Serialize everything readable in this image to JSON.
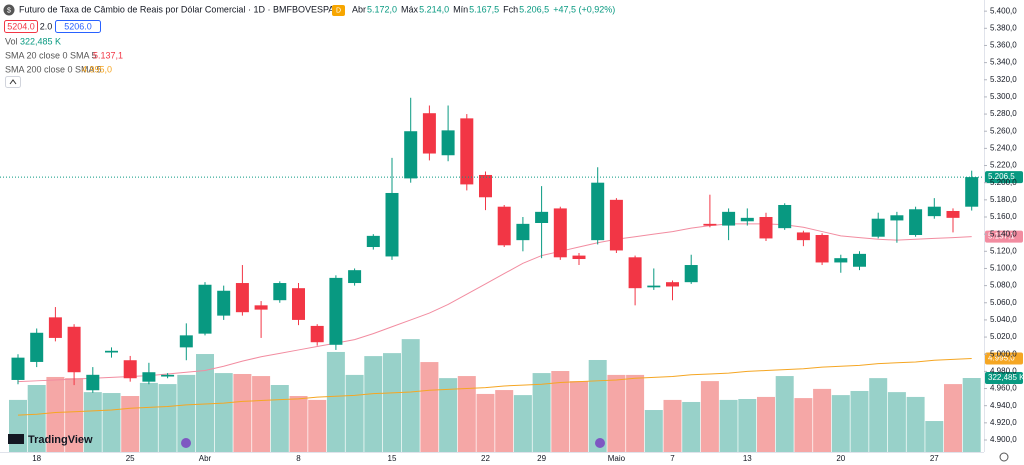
{
  "header": {
    "title": "Futuro de Taxa de Câmbio de Reais por Dólar Comercial · 1D · BMFBOVESPA",
    "badge": "D",
    "stats": [
      {
        "k": "Abr",
        "v": "5.172,0"
      },
      {
        "k": "Máx",
        "v": "5.214,0"
      },
      {
        "k": "Mín",
        "v": "5.167,5"
      },
      {
        "k": "Fch",
        "v": "5.206,5"
      }
    ],
    "change": "+47,5 (+0,92%)",
    "bid": "5204.0",
    "spread": "2.0",
    "ask": "5206.0",
    "logo": "TradingView"
  },
  "chart_data": {
    "type": "candlestick",
    "up_color": "#089981",
    "down_color": "#f23645",
    "categories": [
      null,
      "18",
      null,
      null,
      null,
      null,
      "25",
      null,
      null,
      null,
      "Abr",
      null,
      null,
      null,
      null,
      "8",
      null,
      null,
      null,
      null,
      "15",
      null,
      null,
      null,
      null,
      "22",
      null,
      null,
      "29",
      null,
      null,
      null,
      "Maio",
      null,
      null,
      "7",
      null,
      null,
      null,
      "13",
      null,
      null,
      null,
      null,
      "20",
      null,
      null,
      null,
      null,
      "27",
      null,
      null
    ],
    "open": [
      4970,
      4991,
      5043,
      5032,
      4958,
      5002,
      4993,
      4968,
      4974,
      5008,
      5024,
      5045,
      5083,
      5057,
      5063,
      5077,
      5033,
      5011,
      5083,
      5125,
      5114,
      5205,
      5281,
      5232,
      5275,
      5209,
      5172,
      5133,
      5153,
      5170,
      5115,
      5133,
      5180,
      5113,
      5078,
      5084,
      5084,
      5152,
      5150,
      5155,
      5160,
      5147,
      5142,
      5139,
      5107,
      5102,
      5137,
      5156,
      5139,
      5161,
      5167,
      5172
    ],
    "high": [
      5000,
      5030,
      5055,
      5035,
      4985,
      5008,
      4998,
      4990,
      4978,
      5036,
      5084,
      5080,
      5104,
      5062,
      5085,
      5083,
      5035,
      5092,
      5100,
      5140,
      5229,
      5299,
      5290,
      5290,
      5280,
      5213,
      5174,
      5160,
      5196,
      5172,
      5118,
      5218,
      5182,
      5115,
      5100,
      5086,
      5116,
      5186,
      5170,
      5170,
      5165,
      5176,
      5144,
      5141,
      5116,
      5120,
      5165,
      5166,
      5172,
      5182,
      5170,
      5214
    ],
    "low": [
      4965,
      4985,
      5015,
      4964,
      4955,
      4996,
      4968,
      4965,
      4972,
      4993,
      5022,
      5040,
      5045,
      5019,
      5060,
      5034,
      5010,
      5005,
      5080,
      5122,
      5110,
      5200,
      5226,
      5225,
      5191,
      5168,
      5125,
      5120,
      5112,
      5110,
      5104,
      5128,
      5118,
      5057,
      5075,
      5063,
      5082,
      5148,
      5133,
      5150,
      5132,
      5145,
      5126,
      5104,
      5095,
      5098,
      5135,
      5130,
      5137,
      5158,
      5142,
      5167.5
    ],
    "close": [
      4996,
      5025,
      5019,
      4979,
      4976,
      5004,
      4972,
      4979,
      4976,
      5022,
      5081,
      5074,
      5049,
      5052,
      5083,
      5040,
      5014,
      5089,
      5098,
      5138,
      5188,
      5260,
      5234,
      5261,
      5198,
      5183,
      5127,
      5152,
      5166,
      5113,
      5111,
      5200,
      5121,
      5077,
      5080,
      5079,
      5104,
      5150,
      5166,
      5159,
      5135,
      5174,
      5133,
      5107,
      5112,
      5117,
      5158,
      5162,
      5169,
      5172,
      5159,
      5206.5
    ],
    "close_label": "5.206,5",
    "ylim": [
      4886,
      5413
    ],
    "yticks": [
      {
        "value": 5400,
        "label": "5.400,0"
      },
      {
        "value": 5380,
        "label": "5.380,0"
      },
      {
        "value": 5360,
        "label": "5.360,0"
      },
      {
        "value": 5340,
        "label": "5.340,0"
      },
      {
        "value": 5320,
        "label": "5.320,0"
      },
      {
        "value": 5300,
        "label": "5.300,0"
      },
      {
        "value": 5280,
        "label": "5.280,0"
      },
      {
        "value": 5260,
        "label": "5.260,0"
      },
      {
        "value": 5240,
        "label": "5.240,0"
      },
      {
        "value": 5220,
        "label": "5.220,0"
      },
      {
        "value": 5200,
        "label": "5.200,0"
      },
      {
        "value": 5180,
        "label": "5.180,0"
      },
      {
        "value": 5160,
        "label": "5.160,0"
      },
      {
        "value": 5140,
        "label": "5.140,0"
      },
      {
        "value": 5120,
        "label": "5.120,0"
      },
      {
        "value": 5100,
        "label": "5.100,0"
      },
      {
        "value": 5080,
        "label": "5.080,0"
      },
      {
        "value": 5060,
        "label": "5.060,0"
      },
      {
        "value": 5040,
        "label": "5.040,0"
      },
      {
        "value": 5020,
        "label": "5.020,0"
      },
      {
        "value": 5000,
        "label": "5.000,0"
      },
      {
        "value": 4980,
        "label": "4.980,0"
      },
      {
        "value": 4960,
        "label": "4.960,0"
      },
      {
        "value": 4940,
        "label": "4.940,0"
      },
      {
        "value": 4920,
        "label": "4.920,0"
      },
      {
        "value": 4900,
        "label": "4.900,0"
      }
    ],
    "volume": {
      "name": "Vol",
      "last_label": "322,485 K",
      "color_up": "#98d1c9",
      "color_down": "#f5a7a6",
      "vlim": [
        0,
        1970
      ],
      "values": [
        227,
        292,
        327,
        322,
        261,
        257,
        244,
        301,
        296,
        336,
        427,
        344,
        340,
        331,
        292,
        244,
        227,
        436,
        336,
        418,
        431,
        492,
        392,
        322,
        331,
        253,
        270,
        248,
        344,
        353,
        309,
        401,
        336,
        336,
        183,
        227,
        218,
        309,
        227,
        231,
        240,
        331,
        235,
        275,
        248,
        266,
        322,
        261,
        240,
        135,
        296,
        322.485
      ]
    },
    "overlays": [
      {
        "name": "SMA 20 close 0 SMA 5",
        "color": "#f28ca0",
        "last_label": "5.137,1",
        "values": [
          4968,
          4969,
          4970,
          4971,
          4972,
          4973,
          4974,
          4975,
          4977,
          4979,
          4981,
          4986,
          4992,
          4997,
          5001,
          5005,
          5009,
          5013,
          5017,
          5024,
          5032,
          5040,
          5048,
          5058,
          5070,
          5082,
          5094,
          5106,
          5115,
          5120,
          5125,
          5130,
          5134,
          5137,
          5140,
          5143,
          5147,
          5150,
          5152,
          5152,
          5152,
          5151,
          5148,
          5143,
          5138,
          5136,
          5134,
          5133,
          5134,
          5135,
          5136,
          5137.1
        ]
      },
      {
        "name": "SMA 200 close 0 SMA 5",
        "color": "#f5a623",
        "last_label": "4.995,0",
        "values": [
          4929,
          4930,
          4932,
          4933,
          4934,
          4935,
          4937,
          4938,
          4939,
          4941,
          4942,
          4943,
          4945,
          4946,
          4947,
          4948,
          4950,
          4951,
          4952,
          4954,
          4955,
          4956,
          4958,
          4959,
          4960,
          4961,
          4963,
          4964,
          4965,
          4967,
          4968,
          4969,
          4970,
          4972,
          4973,
          4974,
          4976,
          4977,
          4978,
          4980,
          4981,
          4982,
          4983,
          4985,
          4986,
          4987,
          4989,
          4990,
          4991,
          4993,
          4994,
          4995
        ]
      }
    ]
  }
}
